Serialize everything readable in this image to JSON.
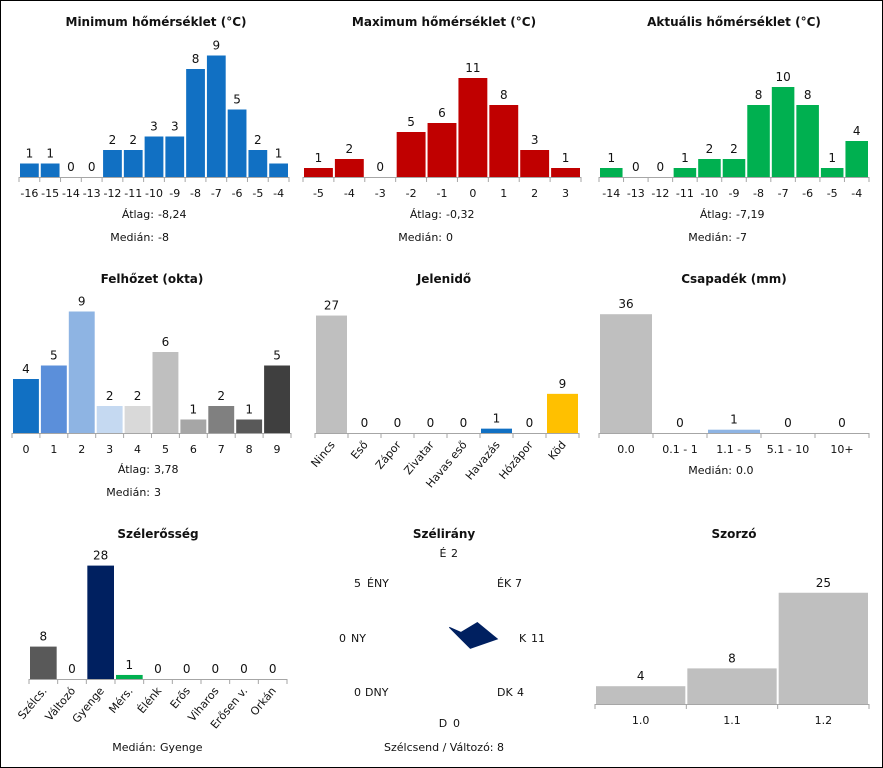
{
  "chart_data": [
    {
      "type": "bar",
      "title": "Minimum hőmérséklet (°C)",
      "categories": [
        "-16",
        "-15",
        "-14",
        "-13",
        "-12",
        "-11",
        "-10",
        "-9",
        "-8",
        "-7",
        "-6",
        "-5",
        "-4"
      ],
      "values": [
        1,
        1,
        0,
        0,
        2,
        2,
        3,
        3,
        8,
        9,
        5,
        2,
        1
      ],
      "colors": [
        "#1170C3"
      ],
      "stats": [
        {
          "label": "Átlag:",
          "value": "-8,24"
        },
        {
          "label": "Medián:",
          "value": "-8"
        }
      ]
    },
    {
      "type": "bar",
      "title": "Maximum hőmérséklet (°C)",
      "categories": [
        "-5",
        "-4",
        "-3",
        "-2",
        "-1",
        "0",
        "1",
        "2",
        "3"
      ],
      "values": [
        1,
        2,
        0,
        5,
        6,
        11,
        8,
        3,
        1
      ],
      "colors": [
        "#C00000"
      ],
      "stats": [
        {
          "label": "Átlag:",
          "value": "-0,32"
        },
        {
          "label": "Medián:",
          "value": "0"
        }
      ]
    },
    {
      "type": "bar",
      "title": "Aktuális hőmérséklet (°C)",
      "categories": [
        "-14",
        "-13",
        "-12",
        "-11",
        "-10",
        "-9",
        "-8",
        "-7",
        "-6",
        "-5",
        "-4"
      ],
      "values": [
        1,
        0,
        0,
        1,
        2,
        2,
        8,
        10,
        8,
        1,
        4
      ],
      "colors": [
        "#00B050"
      ],
      "stats": [
        {
          "label": "Átlag:",
          "value": "-7,19"
        },
        {
          "label": "Medián:",
          "value": "-7"
        }
      ]
    },
    {
      "type": "bar",
      "title": "Felhőzet (okta)",
      "categories": [
        "0",
        "1",
        "2",
        "3",
        "4",
        "5",
        "6",
        "7",
        "8",
        "9"
      ],
      "values": [
        4,
        5,
        9,
        2,
        2,
        6,
        1,
        2,
        1,
        5
      ],
      "colors": [
        "#1170C3",
        "#5B8FDA",
        "#8EB4E3",
        "#C5D9F1",
        "#D9D9D9",
        "#BFBFBF",
        "#A6A6A6",
        "#808080",
        "#595959",
        "#3F3F3F"
      ],
      "stats": [
        {
          "label": "Átlag:",
          "value": "3,78"
        },
        {
          "label": "Medián:",
          "value": "3"
        }
      ]
    },
    {
      "type": "bar",
      "title": "Jelenidő",
      "categories": [
        "Nincs",
        "Eső",
        "Zápor",
        "Zivatar",
        "Havas eső",
        "Havazás",
        "Hózápor",
        "Köd"
      ],
      "values": [
        27,
        0,
        0,
        0,
        0,
        1,
        0,
        9
      ],
      "colors": [
        "#BFBFBF",
        "#BFBFBF",
        "#BFBFBF",
        "#BFBFBF",
        "#BFBFBF",
        "#1170C3",
        "#BFBFBF",
        "#FFC000"
      ],
      "stats": []
    },
    {
      "type": "bar",
      "title": "Csapadék (mm)",
      "categories": [
        "0.0",
        "0.1 - 1",
        "1.1 - 5",
        "5.1 - 10",
        "10+"
      ],
      "values": [
        36,
        0,
        1,
        0,
        0
      ],
      "colors": [
        "#BFBFBF",
        "#BFBFBF",
        "#8EB4E3",
        "#BFBFBF",
        "#BFBFBF"
      ],
      "stats": [
        {
          "label": "Medián:",
          "value": "0.0"
        }
      ]
    },
    {
      "type": "bar",
      "title": "Szélerősség",
      "categories": [
        "Szélcs.",
        "Változó",
        "Gyenge",
        "Mérs.",
        "Élénk",
        "Erős",
        "Viharos",
        "Erősen v.",
        "Orkán"
      ],
      "values": [
        8,
        0,
        28,
        1,
        0,
        0,
        0,
        0,
        0
      ],
      "colors": [
        "#595959",
        "#595959",
        "#002060",
        "#00B050",
        "#595959",
        "#595959",
        "#595959",
        "#595959",
        "#595959"
      ],
      "stats": [
        {
          "label": "Medián:",
          "value": "Gyenge"
        }
      ]
    },
    {
      "type": "radar",
      "title": "Szélirány",
      "categories": [
        "É",
        "ÉK",
        "K",
        "DK",
        "D",
        "DNY",
        "NY",
        "ÉNY"
      ],
      "values": [
        2,
        7,
        11,
        4,
        0,
        0,
        0,
        5
      ],
      "colors": [
        "#002060"
      ],
      "footer": "Szélcsend / Változó: 8"
    },
    {
      "type": "bar",
      "title": "Szorzó",
      "categories": [
        "1.0",
        "1.1",
        "1.2"
      ],
      "values": [
        4,
        8,
        25
      ],
      "colors": [
        "#BFBFBF"
      ],
      "stats": []
    }
  ]
}
